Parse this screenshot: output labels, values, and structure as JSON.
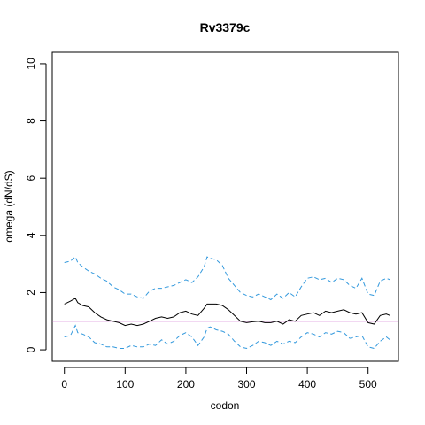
{
  "chart_data": {
    "type": "line",
    "title": "Rv3379c",
    "xlabel": "codon",
    "ylabel": "omega (dN/dS)",
    "xlim": [
      -20,
      550
    ],
    "ylim": [
      -0.4,
      10.4
    ],
    "x_ticks": [
      0,
      100,
      200,
      300,
      400,
      500
    ],
    "y_ticks": [
      0,
      2,
      4,
      6,
      8,
      10
    ],
    "x_tick_labels": [
      "0",
      "100",
      "200",
      "300",
      "400",
      "500"
    ],
    "y_tick_labels": [
      "0",
      "2",
      "4",
      "6",
      "8",
      "10"
    ],
    "reference_line": {
      "y": 1,
      "color": "#cc66cc"
    },
    "grid": false,
    "legend": "none",
    "series": [
      {
        "role": "upper",
        "color": "#3399dd",
        "style": "dashed",
        "x": [
          0,
          10,
          18,
          22,
          30,
          40,
          50,
          60,
          70,
          80,
          90,
          100,
          110,
          120,
          130,
          140,
          150,
          160,
          170,
          180,
          190,
          200,
          210,
          220,
          230,
          235,
          240,
          250,
          260,
          270,
          280,
          290,
          300,
          310,
          320,
          330,
          340,
          350,
          360,
          370,
          380,
          390,
          400,
          410,
          420,
          430,
          440,
          450,
          460,
          470,
          480,
          490,
          500,
          510,
          520,
          530,
          536
        ],
        "values": [
          3.05,
          3.1,
          3.25,
          3.05,
          2.9,
          2.75,
          2.65,
          2.5,
          2.4,
          2.2,
          2.1,
          1.95,
          1.95,
          1.85,
          1.8,
          2.05,
          2.15,
          2.15,
          2.2,
          2.25,
          2.35,
          2.45,
          2.35,
          2.55,
          2.9,
          3.25,
          3.2,
          3.15,
          2.95,
          2.5,
          2.25,
          2.0,
          1.9,
          1.85,
          1.95,
          1.85,
          1.75,
          1.95,
          1.8,
          2.0,
          1.85,
          2.2,
          2.5,
          2.55,
          2.45,
          2.5,
          2.35,
          2.5,
          2.45,
          2.25,
          2.15,
          2.5,
          1.95,
          1.9,
          2.4,
          2.5,
          2.45
        ]
      },
      {
        "role": "estimate",
        "color": "#000000",
        "style": "solid",
        "x": [
          0,
          10,
          18,
          22,
          30,
          40,
          50,
          60,
          70,
          80,
          90,
          100,
          110,
          120,
          130,
          140,
          150,
          160,
          170,
          180,
          190,
          200,
          210,
          220,
          230,
          235,
          240,
          250,
          260,
          270,
          280,
          290,
          300,
          310,
          320,
          330,
          340,
          350,
          360,
          370,
          380,
          390,
          400,
          410,
          420,
          430,
          440,
          450,
          460,
          470,
          480,
          490,
          500,
          510,
          520,
          530,
          536
        ],
        "values": [
          1.6,
          1.7,
          1.8,
          1.65,
          1.55,
          1.5,
          1.3,
          1.15,
          1.05,
          1.0,
          0.95,
          0.85,
          0.9,
          0.85,
          0.9,
          1.0,
          1.1,
          1.15,
          1.1,
          1.15,
          1.3,
          1.35,
          1.25,
          1.2,
          1.45,
          1.6,
          1.6,
          1.6,
          1.55,
          1.4,
          1.2,
          1.0,
          0.95,
          0.98,
          1.0,
          0.95,
          0.95,
          1.0,
          0.9,
          1.05,
          1.0,
          1.2,
          1.25,
          1.3,
          1.2,
          1.35,
          1.3,
          1.35,
          1.4,
          1.3,
          1.25,
          1.3,
          0.95,
          0.9,
          1.2,
          1.25,
          1.2
        ]
      },
      {
        "role": "lower",
        "color": "#3399dd",
        "style": "dashed",
        "x": [
          0,
          10,
          18,
          22,
          30,
          40,
          50,
          60,
          70,
          80,
          90,
          100,
          110,
          120,
          130,
          140,
          150,
          160,
          170,
          180,
          190,
          200,
          210,
          220,
          230,
          235,
          240,
          250,
          260,
          270,
          280,
          290,
          300,
          310,
          320,
          330,
          340,
          350,
          360,
          370,
          380,
          390,
          400,
          410,
          420,
          430,
          440,
          450,
          460,
          470,
          480,
          490,
          500,
          510,
          520,
          530,
          536
        ],
        "values": [
          0.45,
          0.5,
          0.85,
          0.6,
          0.55,
          0.45,
          0.25,
          0.2,
          0.1,
          0.1,
          0.05,
          0.05,
          0.15,
          0.1,
          0.1,
          0.2,
          0.15,
          0.35,
          0.2,
          0.3,
          0.5,
          0.6,
          0.45,
          0.15,
          0.45,
          0.75,
          0.8,
          0.7,
          0.65,
          0.55,
          0.3,
          0.1,
          0.05,
          0.15,
          0.3,
          0.25,
          0.15,
          0.3,
          0.2,
          0.3,
          0.25,
          0.45,
          0.6,
          0.55,
          0.45,
          0.6,
          0.55,
          0.65,
          0.6,
          0.4,
          0.45,
          0.5,
          0.1,
          0.05,
          0.3,
          0.45,
          0.35
        ]
      }
    ]
  }
}
